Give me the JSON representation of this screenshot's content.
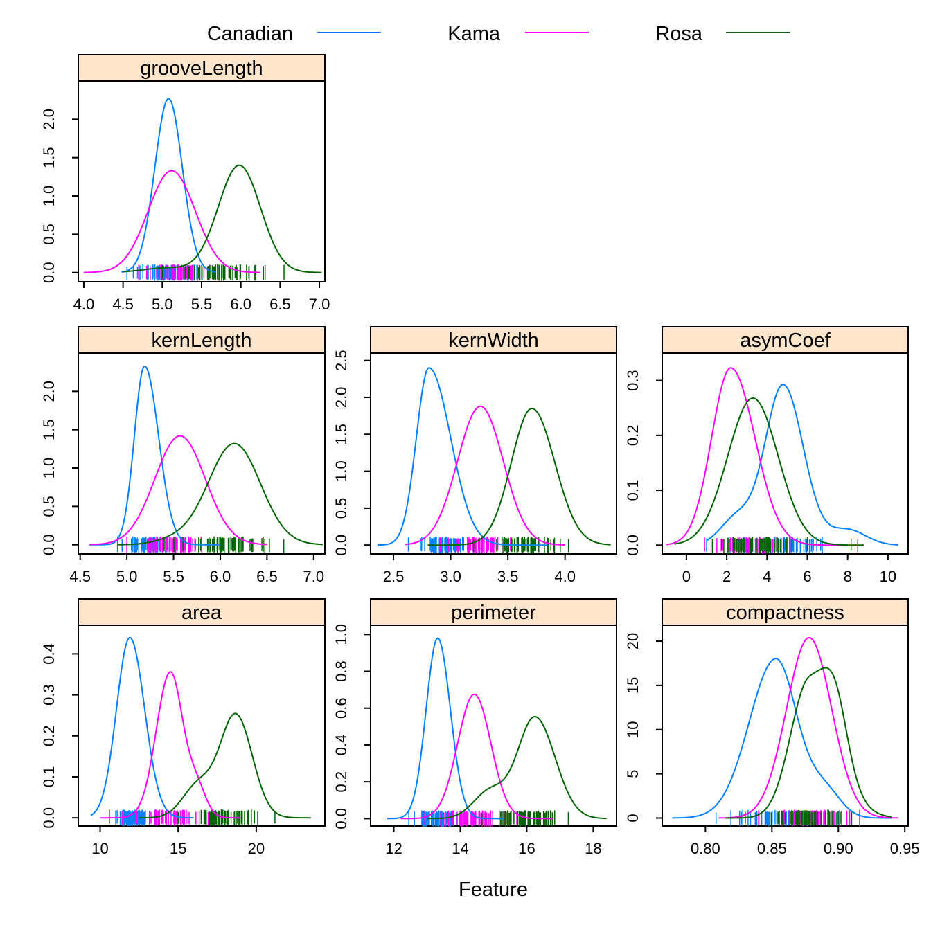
{
  "legend": [
    {
      "label": "Canadian",
      "color": "#0080ff"
    },
    {
      "label": "Kama",
      "color": "#ff00ff"
    },
    {
      "label": "Rosa",
      "color": "#006400"
    }
  ],
  "xlabel": "Feature",
  "chart_data": [
    {
      "type": "line",
      "title": "grooveLength",
      "xlim": [
        3.93,
        7.07
      ],
      "ylim": [
        -0.12,
        2.5
      ],
      "xticks": [
        "4.0",
        "4.5",
        "5.0",
        "5.5",
        "6.0",
        "6.5",
        "7.0"
      ],
      "yticks": [
        "0.0",
        "0.5",
        "1.0",
        "1.5",
        "2.0"
      ],
      "series": [
        {
          "name": "Canadian",
          "peaks": [
            [
              5.08,
              2.27,
              0.175,
              0.175
            ]
          ],
          "range": [
            4.48,
            5.68
          ]
        },
        {
          "name": "Kama",
          "peaks": [
            [
              5.12,
              1.33,
              0.3,
              0.3
            ]
          ],
          "range": [
            4.0,
            6.25
          ]
        },
        {
          "name": "Rosa",
          "peaks": [
            [
              5.98,
              1.4,
              0.27,
              0.27
            ],
            [
              5.05,
              0.06,
              0.3,
              0.3
            ]
          ],
          "range": [
            4.5,
            7.03
          ]
        }
      ],
      "rug": [
        {
          "name": "Canadian",
          "min": 4.55,
          "max": 5.5,
          "count": 55
        },
        {
          "name": "Kama",
          "min": 4.7,
          "max": 5.6,
          "count": 55
        },
        {
          "name": "Rosa",
          "min": 5.0,
          "max": 6.55,
          "count": 55
        }
      ]
    },
    {
      "type": "line",
      "title": "kernLength",
      "xlim": [
        4.48,
        7.12
      ],
      "ylim": [
        -0.12,
        2.5
      ],
      "xticks": [
        "4.5",
        "5.0",
        "5.5",
        "6.0",
        "6.5",
        "7.0"
      ],
      "yticks": [
        "0.0",
        "0.5",
        "1.0",
        "1.5",
        "2.0"
      ],
      "series": [
        {
          "name": "Canadian",
          "peaks": [
            [
              5.19,
              2.33,
              0.11,
              0.15
            ]
          ],
          "range": [
            4.6,
            6.0
          ]
        },
        {
          "name": "Kama",
          "peaks": [
            [
              5.57,
              1.42,
              0.27,
              0.27
            ]
          ],
          "range": [
            4.6,
            6.5
          ]
        },
        {
          "name": "Rosa",
          "peaks": [
            [
              6.15,
              1.32,
              0.28,
              0.28
            ],
            [
              5.5,
              0.06,
              0.2,
              0.2
            ]
          ],
          "range": [
            4.9,
            7.1
          ]
        }
      ],
      "rug": [
        {
          "name": "Canadian",
          "min": 4.9,
          "max": 5.6,
          "count": 55
        },
        {
          "name": "Kama",
          "min": 5.0,
          "max": 6.0,
          "count": 55
        },
        {
          "name": "Rosa",
          "min": 5.4,
          "max": 6.68,
          "count": 55
        }
      ]
    },
    {
      "type": "line",
      "title": "kernWidth",
      "xlim": [
        2.3,
        4.45
      ],
      "ylim": [
        -0.12,
        2.6
      ],
      "xticks": [
        "2.5",
        "3.0",
        "3.5",
        "4.0"
      ],
      "yticks": [
        "0.0",
        "0.5",
        "1.0",
        "1.5",
        "2.0",
        "2.5"
      ],
      "series": [
        {
          "name": "Canadian",
          "peaks": [
            [
              2.81,
              2.4,
              0.11,
              0.19
            ]
          ],
          "range": [
            2.36,
            3.85
          ]
        },
        {
          "name": "Kama",
          "peaks": [
            [
              3.26,
              1.88,
              0.2,
              0.2
            ]
          ],
          "range": [
            2.6,
            4.0
          ]
        },
        {
          "name": "Rosa",
          "peaks": [
            [
              3.71,
              1.85,
              0.18,
              0.2
            ]
          ],
          "range": [
            2.8,
            4.4
          ]
        }
      ],
      "rug": [
        {
          "name": "Canadian",
          "min": 2.63,
          "max": 3.2,
          "count": 55
        },
        {
          "name": "Kama",
          "min": 2.85,
          "max": 3.68,
          "count": 55
        },
        {
          "name": "Rosa",
          "min": 3.2,
          "max": 4.03,
          "count": 55
        }
      ]
    },
    {
      "type": "line",
      "title": "asymCoef",
      "xlim": [
        -1.2,
        11.0
      ],
      "ylim": [
        -0.016,
        0.35
      ],
      "xticks": [
        "0",
        "2",
        "4",
        "6",
        "8",
        "10"
      ],
      "yticks": [
        "0.0",
        "0.1",
        "0.2",
        "0.3"
      ],
      "series": [
        {
          "name": "Canadian",
          "peaks": [
            [
              4.8,
              0.292,
              0.9,
              1.0
            ],
            [
              2.5,
              0.05,
              0.8,
              0.8
            ],
            [
              8.0,
              0.028,
              0.9,
              0.9
            ]
          ],
          "range": [
            1.0,
            10.5
          ]
        },
        {
          "name": "Kama",
          "peaks": [
            [
              2.2,
              0.323,
              0.95,
              1.2
            ]
          ],
          "range": [
            -1.0,
            8.0
          ]
        },
        {
          "name": "Rosa",
          "peaks": [
            [
              3.3,
              0.268,
              1.25,
              1.25
            ]
          ],
          "range": [
            -0.6,
            8.8
          ]
        }
      ],
      "rug": [
        {
          "name": "Canadian",
          "min": 1.0,
          "max": 8.5,
          "count": 55
        },
        {
          "name": "Kama",
          "min": 0.9,
          "max": 5.5,
          "count": 55
        },
        {
          "name": "Rosa",
          "min": 1.3,
          "max": 6.0,
          "count": 55
        }
      ]
    },
    {
      "type": "line",
      "title": "area",
      "xlim": [
        8.6,
        24.4
      ],
      "ylim": [
        -0.02,
        0.47
      ],
      "xticks": [
        "10",
        "15",
        "20"
      ],
      "yticks": [
        "0.0",
        "0.1",
        "0.2",
        "0.3",
        "0.4"
      ],
      "series": [
        {
          "name": "Canadian",
          "peaks": [
            [
              11.9,
              0.44,
              0.85,
              0.95
            ]
          ],
          "range": [
            9.4,
            16.0
          ]
        },
        {
          "name": "Kama",
          "peaks": [
            [
              14.5,
              0.355,
              0.9,
              0.8
            ],
            [
              16.2,
              0.07,
              0.6,
              0.6
            ]
          ],
          "range": [
            10.0,
            19.0
          ]
        },
        {
          "name": "Rosa",
          "peaks": [
            [
              18.7,
              0.25,
              1.0,
              1.05
            ],
            [
              16.3,
              0.08,
              1.0,
              1.0
            ]
          ],
          "range": [
            12.5,
            23.5
          ]
        }
      ],
      "rug": [
        {
          "name": "Canadian",
          "min": 10.6,
          "max": 13.5,
          "count": 55
        },
        {
          "name": "Kama",
          "min": 11.4,
          "max": 17.3,
          "count": 55
        },
        {
          "name": "Rosa",
          "min": 15.0,
          "max": 21.2,
          "count": 55
        }
      ]
    },
    {
      "type": "line",
      "title": "perimeter",
      "xlim": [
        11.3,
        18.7
      ],
      "ylim": [
        -0.04,
        1.05
      ],
      "xticks": [
        "12",
        "14",
        "16",
        "18"
      ],
      "yticks": [
        "0.0",
        "0.2",
        "0.4",
        "0.6",
        "0.8",
        "1.0"
      ],
      "series": [
        {
          "name": "Canadian",
          "peaks": [
            [
              13.32,
              0.98,
              0.35,
              0.38
            ]
          ],
          "range": [
            11.8,
            15.3
          ]
        },
        {
          "name": "Kama",
          "peaks": [
            [
              14.42,
              0.675,
              0.5,
              0.5
            ]
          ],
          "range": [
            12.2,
            16.8
          ]
        },
        {
          "name": "Rosa",
          "peaks": [
            [
              16.25,
              0.55,
              0.52,
              0.6
            ],
            [
              14.9,
              0.15,
              0.5,
              0.5
            ]
          ],
          "range": [
            13.0,
            18.4
          ]
        }
      ],
      "rug": [
        {
          "name": "Canadian",
          "min": 12.45,
          "max": 14.1,
          "count": 55
        },
        {
          "name": "Kama",
          "min": 12.9,
          "max": 15.7,
          "count": 55
        },
        {
          "name": "Rosa",
          "min": 14.65,
          "max": 17.25,
          "count": 55
        }
      ]
    },
    {
      "type": "line",
      "title": "compactness",
      "xlim": [
        0.7675,
        0.9525
      ],
      "ylim": [
        -0.9,
        21.8
      ],
      "xticks": [
        "0.80",
        "0.85",
        "0.90",
        "0.95"
      ],
      "yticks": [
        "0",
        "5",
        "10",
        "15",
        "20"
      ],
      "series": [
        {
          "name": "Canadian",
          "peaks": [
            [
              0.853,
              18.0,
              0.02,
              0.016
            ],
            [
              0.89,
              3.0,
              0.012,
              0.012
            ]
          ],
          "range": [
            0.775,
            0.94
          ]
        },
        {
          "name": "Kama",
          "peaks": [
            [
              0.878,
              20.4,
              0.017,
              0.017
            ]
          ],
          "range": [
            0.81,
            0.945
          ]
        },
        {
          "name": "Rosa",
          "peaks": [
            [
              0.878,
              15.5,
              0.014,
              0.02
            ],
            [
              0.898,
              6.0,
              0.009,
              0.009
            ]
          ],
          "range": [
            0.815,
            0.94
          ]
        }
      ],
      "rug": [
        {
          "name": "Canadian",
          "min": 0.808,
          "max": 0.9,
          "count": 55
        },
        {
          "name": "Kama",
          "min": 0.84,
          "max": 0.916,
          "count": 55
        },
        {
          "name": "Rosa",
          "min": 0.845,
          "max": 0.91,
          "count": 55
        }
      ]
    }
  ]
}
